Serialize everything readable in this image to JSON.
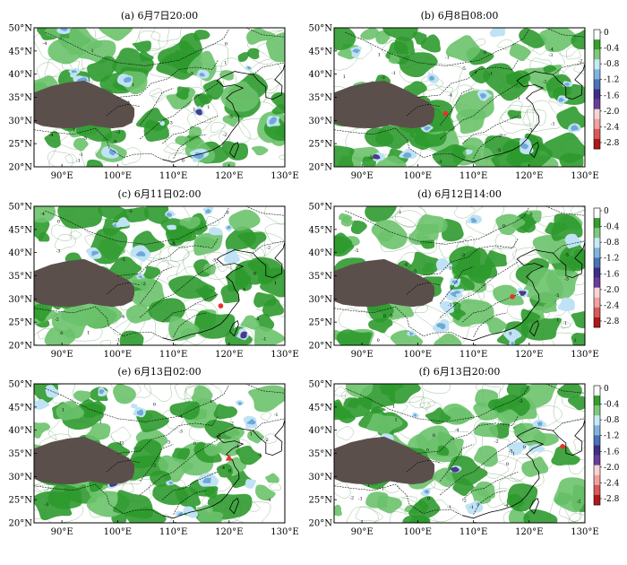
{
  "figure": {
    "panels": [
      {
        "title": "(a) 6月7日20:00",
        "marker": null
      },
      {
        "title": "(b) 6月8日08:00",
        "marker": {
          "lon": 105,
          "lat": 31.5,
          "shape": "dot"
        }
      },
      {
        "title": "(c) 6月11日02:00",
        "marker": {
          "lon": 118.5,
          "lat": 28.5,
          "shape": "dot"
        }
      },
      {
        "title": "(d) 6月12日14:00",
        "marker": {
          "lon": 117,
          "lat": 30.5,
          "shape": "dot"
        }
      },
      {
        "title": "(e) 6月13日02:00",
        "marker": {
          "lon": 120,
          "lat": 34,
          "shape": "triangle"
        }
      },
      {
        "title": "(f) 6月13日20:00",
        "marker": {
          "lon": 126,
          "lat": 36.5,
          "shape": "dot"
        }
      }
    ],
    "x_ticks": [
      "90°E",
      "100°E",
      "110°E",
      "120°E",
      "130°E"
    ],
    "x_tick_values": [
      90,
      100,
      110,
      120,
      130
    ],
    "y_ticks": [
      "50°N",
      "45°N",
      "40°N",
      "35°N",
      "30°N",
      "25°N",
      "20°N"
    ],
    "y_tick_values": [
      50,
      45,
      40,
      35,
      30,
      25,
      20
    ],
    "lon_range": [
      85,
      130
    ],
    "lat_range": [
      20,
      50
    ],
    "colorbar": {
      "labels": [
        "0",
        "-0.4",
        "-0.8",
        "-1.2",
        "-1.6",
        "-2.0",
        "-2.4",
        "-2.8"
      ],
      "colors": [
        "#ffffff",
        "#33a02c",
        "#7fc97f",
        "#c6e9f5",
        "#7fb4dd",
        "#4a73b8",
        "#3d2f85",
        "#6a3d9a",
        "#f7d4d4",
        "#f2a0a0",
        "#d85a5a",
        "#b01818"
      ]
    },
    "colors": {
      "green_dark": "#2e9a2e",
      "green_light": "#6cc26c",
      "blue_light": "#bfe3f4",
      "blue_mid": "#6fa8d8",
      "purple": "#4b3a8c",
      "plateau": "#5b4f4c",
      "contour": "#2f7f2f",
      "marker": "#e8322b"
    }
  }
}
